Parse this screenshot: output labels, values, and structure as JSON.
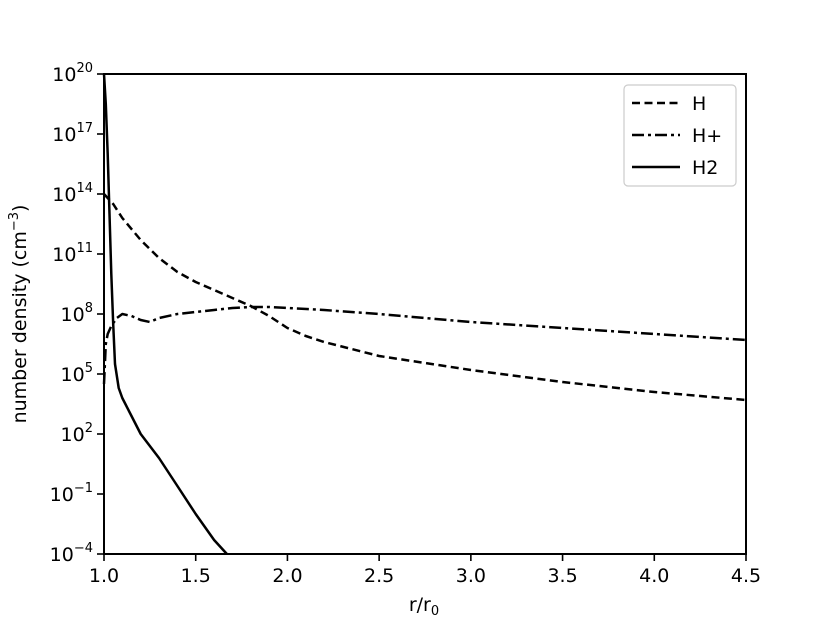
{
  "chart_data": {
    "type": "line",
    "title": "",
    "xlabel": "r/r",
    "xlabel_sub": "0",
    "ylabel": "number density (cm",
    "ylabel_sup": "−3",
    "ylabel_end": ")",
    "xlim": [
      1.0,
      4.5
    ],
    "ylim_log10": [
      -4,
      20
    ],
    "yscale": "log",
    "grid": false,
    "legend_position": "top-right",
    "x_ticks": [
      {
        "value": 1.0,
        "label": "1.0"
      },
      {
        "value": 1.5,
        "label": "1.5"
      },
      {
        "value": 2.0,
        "label": "2.0"
      },
      {
        "value": 2.5,
        "label": "2.5"
      },
      {
        "value": 3.0,
        "label": "3.0"
      },
      {
        "value": 3.5,
        "label": "3.5"
      },
      {
        "value": 4.0,
        "label": "4.0"
      },
      {
        "value": 4.5,
        "label": "4.5"
      }
    ],
    "y_ticks": [
      {
        "exp": 20,
        "base": "10",
        "sup": "20"
      },
      {
        "exp": 17,
        "base": "10",
        "sup": "17"
      },
      {
        "exp": 14,
        "base": "10",
        "sup": "14"
      },
      {
        "exp": 11,
        "base": "10",
        "sup": "11"
      },
      {
        "exp": 8,
        "base": "10",
        "sup": "8"
      },
      {
        "exp": 5,
        "base": "10",
        "sup": "5"
      },
      {
        "exp": 2,
        "base": "10",
        "sup": "2"
      },
      {
        "exp": -1,
        "base": "10",
        "sup": "−1"
      },
      {
        "exp": -4,
        "base": "10",
        "sup": "−4"
      }
    ],
    "series": [
      {
        "name": "H",
        "dash": "dashed",
        "x": [
          1.0,
          1.05,
          1.1,
          1.2,
          1.3,
          1.4,
          1.5,
          1.6,
          1.7,
          1.8,
          1.9,
          2.0,
          2.1,
          2.2,
          2.5,
          3.0,
          3.5,
          4.0,
          4.5
        ],
        "log10_y": [
          14.0,
          13.5,
          12.8,
          11.7,
          10.8,
          10.1,
          9.6,
          9.2,
          8.8,
          8.4,
          7.9,
          7.3,
          6.9,
          6.6,
          5.9,
          5.2,
          4.6,
          4.1,
          3.7
        ]
      },
      {
        "name": "H+",
        "dash": "dashdot",
        "x": [
          1.0,
          1.01,
          1.02,
          1.04,
          1.07,
          1.1,
          1.15,
          1.2,
          1.25,
          1.3,
          1.4,
          1.5,
          1.6,
          1.7,
          1.8,
          1.9,
          2.0,
          2.2,
          2.5,
          3.0,
          3.5,
          4.0,
          4.5
        ],
        "log10_y": [
          4.5,
          6.5,
          7.0,
          7.4,
          7.8,
          8.0,
          7.9,
          7.7,
          7.6,
          7.8,
          8.0,
          8.1,
          8.2,
          8.3,
          8.35,
          8.35,
          8.3,
          8.2,
          8.0,
          7.6,
          7.3,
          7.0,
          6.7
        ]
      },
      {
        "name": "H2",
        "dash": "solid",
        "x": [
          1.0,
          1.01,
          1.02,
          1.03,
          1.04,
          1.05,
          1.06,
          1.08,
          1.1,
          1.15,
          1.2,
          1.3,
          1.4,
          1.5,
          1.6,
          1.67
        ],
        "log10_y": [
          20.0,
          18.5,
          16.0,
          13.0,
          10.0,
          7.5,
          5.5,
          4.3,
          3.8,
          2.9,
          2.0,
          0.8,
          -0.6,
          -2.0,
          -3.3,
          -4.0
        ]
      }
    ]
  }
}
